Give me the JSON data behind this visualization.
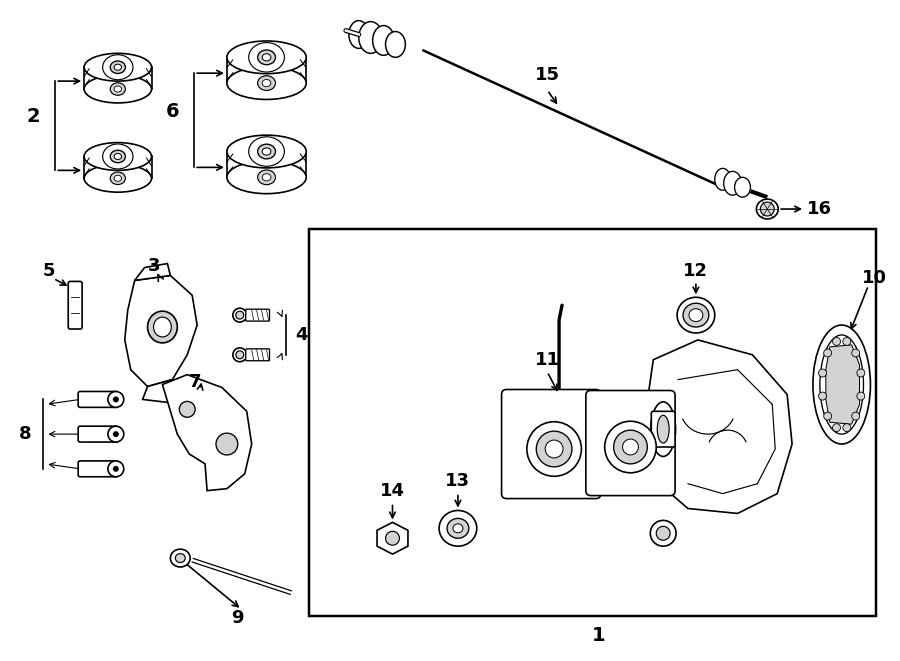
{
  "bg_color": "#ffffff",
  "line_color": "#000000",
  "fig_width": 9.0,
  "fig_height": 6.61,
  "lw": 1.2
}
